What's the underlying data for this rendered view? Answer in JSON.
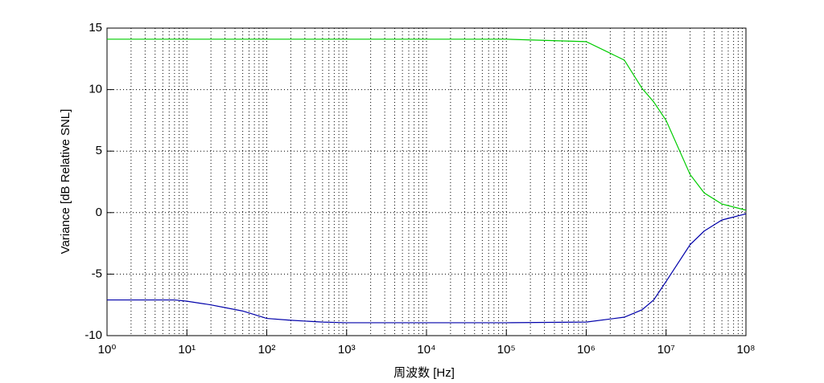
{
  "chart_data": {
    "type": "line",
    "xlabel": "周波数 [Hz]",
    "ylabel": "Variance [dB Relative SNL]",
    "xscale": "log",
    "grid": true,
    "minor_grid": true,
    "xlim": [
      1,
      100000000
    ],
    "ylim": [
      -10,
      15
    ],
    "xticks": [
      {
        "value": 1,
        "label": "10⁰"
      },
      {
        "value": 10,
        "label": "10¹"
      },
      {
        "value": 100,
        "label": "10²"
      },
      {
        "value": 1000,
        "label": "10³"
      },
      {
        "value": 10000,
        "label": "10⁴"
      },
      {
        "value": 100000,
        "label": "10⁵"
      },
      {
        "value": 1000000,
        "label": "10⁶"
      },
      {
        "value": 10000000,
        "label": "10⁷"
      },
      {
        "value": 100000000,
        "label": "10⁸"
      }
    ],
    "yticks": [
      -10,
      -5,
      0,
      5,
      10,
      15
    ],
    "x": [
      1,
      2,
      5,
      7,
      10,
      20,
      50,
      100,
      200,
      500,
      1000,
      10000,
      100000,
      1000000,
      3000000,
      5000000,
      7000000,
      10000000,
      20000000,
      30000000,
      50000000,
      100000000
    ],
    "series": [
      {
        "name": "green",
        "color": "#00cc00",
        "values": [
          14.1,
          14.1,
          14.1,
          14.1,
          14.1,
          14.1,
          14.1,
          14.1,
          14.1,
          14.1,
          14.1,
          14.1,
          14.1,
          13.9,
          12.4,
          10.1,
          9.0,
          7.5,
          3.1,
          1.6,
          0.7,
          0.2
        ]
      },
      {
        "name": "blue",
        "color": "#0000aa",
        "values": [
          -7.1,
          -7.1,
          -7.1,
          -7.1,
          -7.2,
          -7.5,
          -8.0,
          -8.6,
          -8.75,
          -8.9,
          -8.95,
          -8.95,
          -8.95,
          -8.9,
          -8.5,
          -7.9,
          -7.1,
          -5.6,
          -2.6,
          -1.5,
          -0.6,
          -0.1
        ]
      }
    ]
  }
}
